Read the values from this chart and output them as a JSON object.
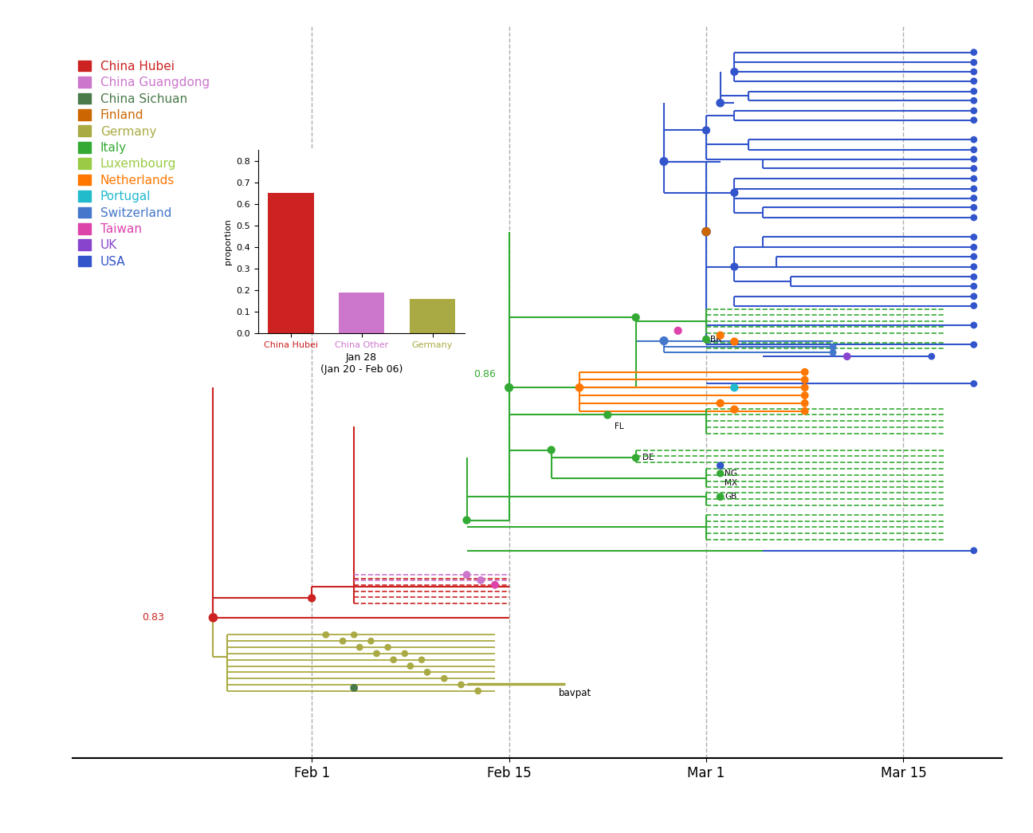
{
  "background_color": "#ffffff",
  "colors": {
    "China Hubei": "#cc2222",
    "China Guangdong": "#cc77cc",
    "China Sichuan": "#4a7a4a",
    "Finland": "#cc6600",
    "Germany": "#aaaa44",
    "Italy": "#33aa33",
    "Luxembourg": "#99cc44",
    "Netherlands": "#ff7700",
    "Portugal": "#22bbcc",
    "Switzerland": "#4477cc",
    "Taiwan": "#dd44aa",
    "UK": "#8844cc",
    "USA": "#3355cc"
  },
  "legend_entries": [
    [
      "China Hubei",
      "#cc2222"
    ],
    [
      "China Guangdong",
      "#cc77cc"
    ],
    [
      "China Sichuan",
      "#4a7a4a"
    ],
    [
      "Finland",
      "#cc6600"
    ],
    [
      "Germany",
      "#aaaa44"
    ],
    [
      "Italy",
      "#33aa33"
    ],
    [
      "Luxembourg",
      "#99cc44"
    ],
    [
      "Netherlands",
      "#ff7700"
    ],
    [
      "Portugal",
      "#22bbcc"
    ],
    [
      "Switzerland",
      "#4477cc"
    ],
    [
      "Taiwan",
      "#dd44aa"
    ],
    [
      "UK",
      "#8844cc"
    ],
    [
      "USA",
      "#3355cc"
    ]
  ],
  "bar_data": {
    "categories": [
      "China Hubei",
      "China Other",
      "Germany"
    ],
    "values": [
      0.65,
      0.19,
      0.16
    ],
    "colors": [
      "#cc2222",
      "#cc77cc",
      "#aaaa44"
    ],
    "ylabel": "proportion",
    "date_label": "Jan 28",
    "date_range": "(Jan 20 - Feb 06)"
  },
  "xaxis": {
    "dates": [
      "Feb 1",
      "Feb 15",
      "Mar 1",
      "Mar 15"
    ]
  }
}
